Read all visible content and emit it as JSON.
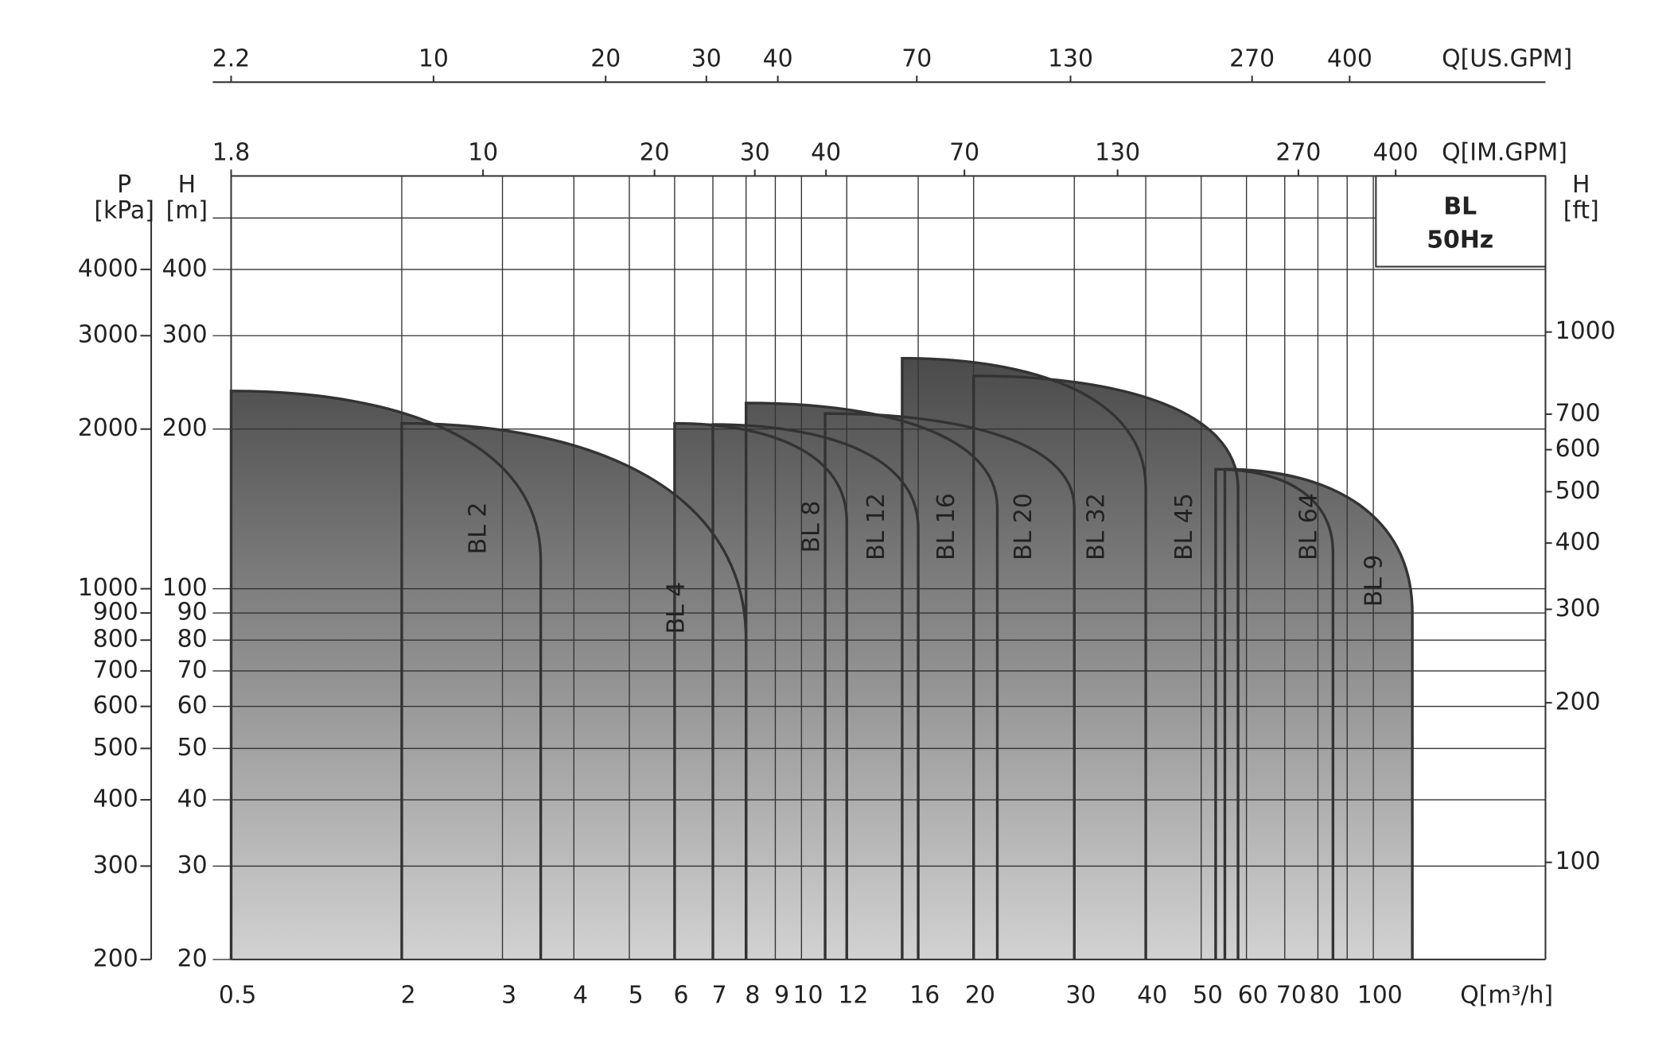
{
  "chart_data": {
    "type": "pump-range",
    "title": "BL",
    "subtitle": "50Hz",
    "log_x": true,
    "log_y": true,
    "grid": true,
    "x_label": "Q[m³/h]",
    "xlim": [
      0.5,
      200
    ],
    "xticks": [
      0.5,
      2,
      3,
      4,
      5,
      6,
      7,
      8,
      9,
      10,
      12,
      16,
      20,
      30,
      40,
      50,
      60,
      70,
      80,
      100
    ],
    "xminor": [
      90
    ],
    "x2_label": "Q[US.GPM]",
    "x2lim": [
      2.2,
      880
    ],
    "x2ticks": [
      2.2,
      10,
      20,
      30,
      40,
      70,
      130,
      270,
      400
    ],
    "x3_label": "Q[IM.GPM]",
    "x3lim": [
      1.8,
      733
    ],
    "x3ticks": [
      1.8,
      10,
      20,
      30,
      40,
      70,
      130,
      270,
      400
    ],
    "y_label": "H",
    "y_unit": "[m]",
    "ylim": [
      20,
      600
    ],
    "yticks": [
      20,
      30,
      40,
      50,
      60,
      70,
      80,
      90,
      100,
      200,
      300,
      400
    ],
    "yminor": [
      500
    ],
    "y3_label": "P",
    "y3_unit": "[kPa]",
    "y3lim": [
      200,
      6000
    ],
    "y3ticks": [
      200,
      300,
      400,
      500,
      600,
      700,
      800,
      900,
      1000,
      2000,
      3000,
      4000
    ],
    "y2_label": "H",
    "y2_unit": "[ft]",
    "y2lim": [
      65.6,
      1968.5
    ],
    "y2ticks": [
      100,
      200,
      300,
      400,
      500,
      600,
      700,
      1000
    ],
    "color": "#4a4a4a",
    "series": [
      {
        "name": "BL 2",
        "flow": [
          0.5,
          3.5
        ],
        "head": [
          236,
          113
        ]
      },
      {
        "name": "BL 4",
        "flow": [
          2,
          8
        ],
        "head": [
          205,
          80
        ]
      },
      {
        "name": "BL 8",
        "flow": [
          6,
          12
        ],
        "head": [
          205,
          134
        ]
      },
      {
        "name": "BL 12",
        "flow": [
          7,
          16
        ],
        "head": [
          204,
          130
        ]
      },
      {
        "name": "BL 16",
        "flow": [
          8,
          22
        ],
        "head": [
          224,
          142
        ]
      },
      {
        "name": "BL 20",
        "flow": [
          11,
          30
        ],
        "head": [
          214,
          142
        ]
      },
      {
        "name": "BL 32",
        "flow": [
          15,
          40
        ],
        "head": [
          272,
          155
        ]
      },
      {
        "name": "BL 45",
        "flow": [
          20,
          58
        ],
        "head": [
          252,
          155
        ]
      },
      {
        "name": "BL 64",
        "flow": [
          53,
          85
        ],
        "head": [
          168,
          117
        ]
      },
      {
        "name": "BL 9",
        "flow": [
          55,
          117
        ],
        "head": [
          168,
          90
        ]
      }
    ]
  }
}
